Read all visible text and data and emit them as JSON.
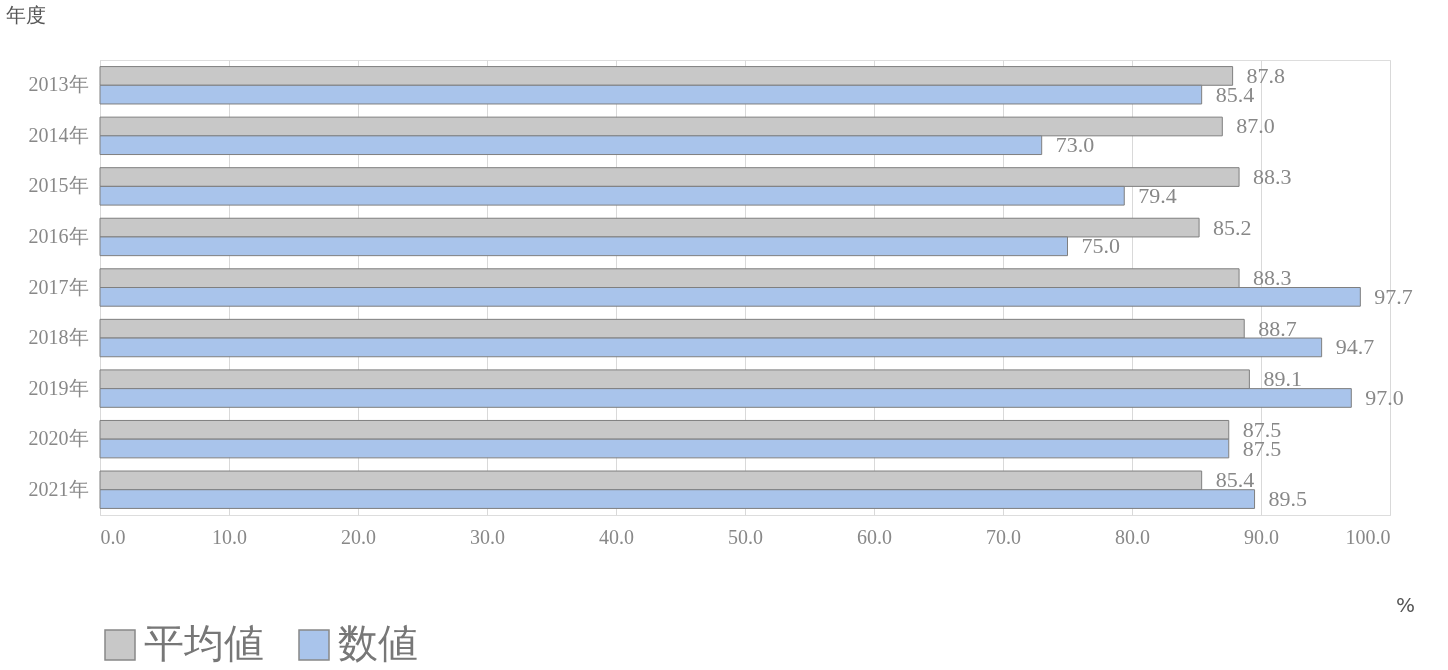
{
  "chart_data": {
    "type": "bar",
    "orientation": "horizontal",
    "categories": [
      "2013年",
      "2014年",
      "2015年",
      "2016年",
      "2017年",
      "2018年",
      "2019年",
      "2020年",
      "2021年"
    ],
    "series": [
      {
        "name": "平均値",
        "color": "#c8c8c8",
        "values": [
          87.8,
          87.0,
          88.3,
          85.2,
          88.3,
          88.7,
          89.1,
          87.5,
          85.4
        ],
        "value_labels": [
          "87.8",
          "87.0",
          "88.3",
          "85.2",
          "88.3",
          "88.7",
          "89.1",
          "87.5",
          "85.4"
        ]
      },
      {
        "name": "数値",
        "color": "#a9c4eb",
        "values": [
          85.4,
          73.0,
          79.4,
          75.0,
          97.7,
          94.7,
          97.0,
          87.5,
          89.5
        ],
        "value_labels": [
          "85.4",
          "73.0",
          "79.4",
          "75.0",
          "97.7",
          "94.7",
          "97.0",
          "87.5",
          "89.5"
        ]
      }
    ],
    "xlim": [
      0,
      100
    ],
    "xticks": [
      {
        "value": 0,
        "label": "0.0"
      },
      {
        "value": 10,
        "label": "10.0"
      },
      {
        "value": 20,
        "label": "20.0"
      },
      {
        "value": 30,
        "label": "30.0"
      },
      {
        "value": 40,
        "label": "40.0"
      },
      {
        "value": 50,
        "label": "50.0"
      },
      {
        "value": 60,
        "label": "60.0"
      },
      {
        "value": 70,
        "label": "70.0"
      },
      {
        "value": 80,
        "label": "80.0"
      },
      {
        "value": 90,
        "label": "90.0"
      },
      {
        "value": 100,
        "label": "100.0"
      }
    ],
    "ylabel": "年度",
    "xlabel": "%",
    "grid": "x",
    "legend": "bottom"
  }
}
